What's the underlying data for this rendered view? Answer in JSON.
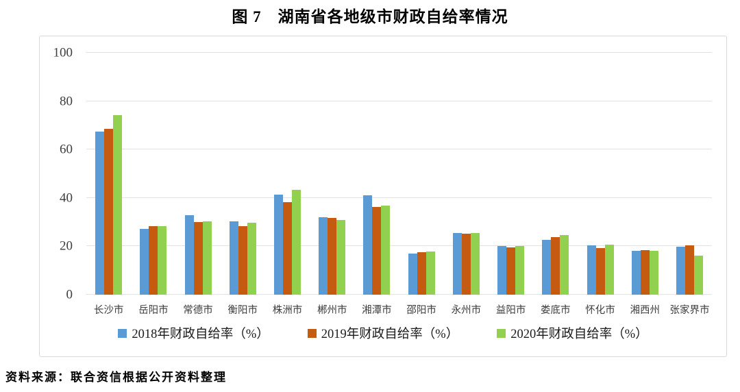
{
  "title": "图 7　湖南省各地级市财政自给率情况",
  "source_note": "资料来源：联合资信根据公开资料整理",
  "colors": {
    "series_2018": "#5B9BD5",
    "series_2019": "#C55A11",
    "series_2020": "#92D050",
    "gridline": "#E2E2E2",
    "frame_border": "#D9D9D9",
    "axis_text": "#3D3D3D"
  },
  "chart_data": {
    "type": "bar",
    "title": "图 7　湖南省各地级市财政自给率情况",
    "categories": [
      "长沙市",
      "岳阳市",
      "常德市",
      "衡阳市",
      "株洲市",
      "郴州市",
      "湘潭市",
      "邵阳市",
      "永州市",
      "益阳市",
      "娄底市",
      "怀化市",
      "湘西州",
      "张家界市"
    ],
    "series": [
      {
        "name": "2018年财政自给率（%）",
        "color": "#5B9BD5",
        "values": [
          67.5,
          27.1,
          32.9,
          30.3,
          41.4,
          31.9,
          41.0,
          17.0,
          25.5,
          20.1,
          22.6,
          20.3,
          18.2,
          19.8
        ]
      },
      {
        "name": "2019年财政自给率（%）",
        "color": "#C55A11",
        "values": [
          68.5,
          28.2,
          30.1,
          28.3,
          38.3,
          31.6,
          36.4,
          17.6,
          25.1,
          19.6,
          23.9,
          19.2,
          18.4,
          20.3
        ]
      },
      {
        "name": "2020年财政自给率（%）",
        "color": "#92D050",
        "values": [
          74.2,
          28.3,
          30.4,
          29.8,
          43.4,
          30.8,
          36.9,
          17.9,
          25.6,
          20.2,
          24.6,
          20.8,
          18.0,
          16.1
        ]
      }
    ],
    "xlabel": "",
    "ylabel": "",
    "ylim": [
      0,
      100
    ],
    "yticks": [
      0,
      20,
      40,
      60,
      80,
      100
    ],
    "grid": true,
    "legend_position": "bottom-inside"
  }
}
